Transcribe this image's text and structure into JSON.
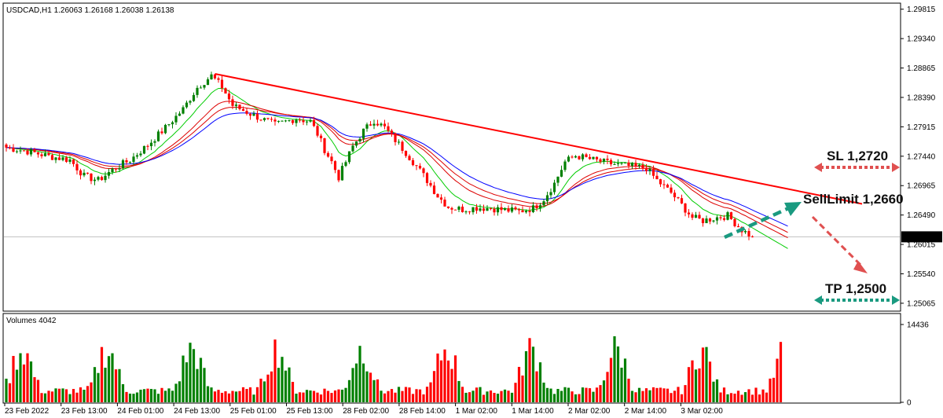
{
  "header": {
    "symbol_line": "USDCAD,H1  1.26063 1.26168 1.26038 1.26138",
    "volume_label": "Volumes 4042"
  },
  "colors": {
    "bull": "#008000",
    "bear": "#ff0000",
    "ma_fast": "#00cc00",
    "ma_mid": "#dd0000",
    "ma_slow": "#0000ff",
    "trendline": "#ff0000",
    "arrow_sl_tp": "#e05050",
    "arrow_teal": "#1a9a80",
    "price_tag_bg": "#000000",
    "price_tag_fg": "#ffffff"
  },
  "annotations": {
    "sl": "SL 1,2720",
    "sell_limit": "SellLimit 1,2660",
    "tp": "TP 1,2500"
  },
  "chart_data": {
    "type": "candlestick",
    "symbol": "USDCAD",
    "timeframe": "H1",
    "price_axis": {
      "ticks": [
        "1.29815",
        "1.29340",
        "1.28865",
        "1.28390",
        "1.27915",
        "1.27440",
        "1.26965",
        "1.26490",
        "1.26015",
        "1.25540",
        "1.25065"
      ],
      "range": [
        1.2495,
        1.299
      ],
      "current_price": "1.26138"
    },
    "volume_axis": {
      "ticks": [
        "14436",
        "0"
      ],
      "range": [
        0,
        14436
      ]
    },
    "time_axis": {
      "ticks": [
        "23 Feb 2022",
        "23 Feb 13:00",
        "24 Feb 01:00",
        "24 Feb 13:00",
        "25 Feb 01:00",
        "25 Feb 13:00",
        "28 Feb 02:00",
        "28 Feb 14:00",
        "1 Mar 02:00",
        "1 Mar 14:00",
        "2 Mar 02:00",
        "2 Mar 14:00",
        "3 Mar 02:00"
      ]
    },
    "price_path": [
      [
        0,
        1.2758
      ],
      [
        6,
        1.2752
      ],
      [
        12,
        1.2744
      ],
      [
        18,
        1.2738
      ],
      [
        22,
        1.2712
      ],
      [
        26,
        1.2705
      ],
      [
        30,
        1.2722
      ],
      [
        35,
        1.2738
      ],
      [
        40,
        1.2762
      ],
      [
        45,
        1.279
      ],
      [
        50,
        1.282
      ],
      [
        54,
        1.2855
      ],
      [
        58,
        1.2874
      ],
      [
        61,
        1.2856
      ],
      [
        64,
        1.2826
      ],
      [
        70,
        1.281
      ],
      [
        76,
        1.2795
      ],
      [
        82,
        1.2805
      ],
      [
        86,
        1.28
      ],
      [
        88,
        1.278
      ],
      [
        90,
        1.2755
      ],
      [
        92,
        1.2735
      ],
      [
        94,
        1.271
      ],
      [
        96,
        1.2735
      ],
      [
        98,
        1.276
      ],
      [
        101,
        1.2785
      ],
      [
        104,
        1.2802
      ],
      [
        107,
        1.279
      ],
      [
        110,
        1.277
      ],
      [
        113,
        1.275
      ],
      [
        116,
        1.2728
      ],
      [
        119,
        1.2705
      ],
      [
        122,
        1.268
      ],
      [
        125,
        1.2662
      ],
      [
        129,
        1.2658
      ],
      [
        133,
        1.2661
      ],
      [
        137,
        1.266
      ],
      [
        141,
        1.2657
      ],
      [
        145,
        1.2655
      ],
      [
        149,
        1.266
      ],
      [
        152,
        1.2675
      ],
      [
        155,
        1.27
      ],
      [
        158,
        1.2735
      ],
      [
        161,
        1.2745
      ],
      [
        166,
        1.2738
      ],
      [
        171,
        1.2732
      ],
      [
        176,
        1.2728
      ],
      [
        181,
        1.2725
      ],
      [
        184,
        1.2705
      ],
      [
        188,
        1.2685
      ],
      [
        191,
        1.2665
      ],
      [
        194,
        1.2645
      ],
      [
        197,
        1.264
      ],
      [
        201,
        1.2645
      ],
      [
        204,
        1.2648
      ],
      [
        208,
        1.2625
      ],
      [
        211,
        1.2614
      ]
    ],
    "volume_bars": 220,
    "trendline": {
      "from": [
        59,
        1.2877
      ],
      "to": [
        242,
        1.2667
      ]
    },
    "forecast_levels": {
      "sl": 1.272,
      "sell_limit": 1.266,
      "tp": 1.25
    }
  }
}
